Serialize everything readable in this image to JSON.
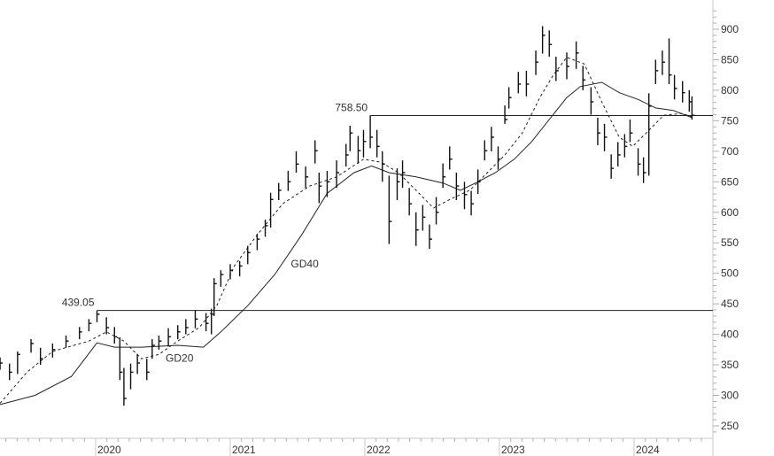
{
  "chart_data": {
    "type": "ohlc",
    "title": "",
    "xlabel": "",
    "ylabel": "",
    "grid": false,
    "x_ticks": [
      "2020",
      "2021",
      "2022",
      "2023",
      "2024"
    ],
    "y_ticks": [
      "900",
      "850",
      "800",
      "750",
      "700",
      "650",
      "600",
      "550",
      "500",
      "450",
      "400",
      "350",
      "300",
      "250"
    ],
    "ylim": [
      240,
      930
    ],
    "xlim_years": [
      2019.29,
      2024.58
    ],
    "bar_columns": [
      "year",
      "high",
      "low",
      "close"
    ],
    "bars": [
      [
        2019.29,
        362,
        342,
        353
      ],
      [
        2019.36,
        352,
        325,
        338
      ],
      [
        2019.42,
        372,
        335,
        367
      ],
      [
        2019.52,
        392,
        370,
        385
      ],
      [
        2019.59,
        378,
        350,
        360
      ],
      [
        2019.68,
        385,
        362,
        375
      ],
      [
        2019.78,
        398,
        378,
        389
      ],
      [
        2019.88,
        412,
        392,
        404
      ],
      [
        2019.95,
        425,
        405,
        418
      ],
      [
        2020.01,
        439.05,
        420,
        433
      ],
      [
        2020.08,
        428,
        400,
        411
      ],
      [
        2020.14,
        412,
        385,
        396
      ],
      [
        2020.18,
        395,
        325,
        338
      ],
      [
        2020.21,
        345,
        283,
        295
      ],
      [
        2020.26,
        352,
        310,
        338
      ],
      [
        2020.31,
        368,
        335,
        353
      ],
      [
        2020.38,
        360,
        325,
        338
      ],
      [
        2020.42,
        392,
        360,
        382
      ],
      [
        2020.47,
        398,
        375,
        389
      ],
      [
        2020.54,
        410,
        380,
        396
      ],
      [
        2020.61,
        415,
        392,
        404
      ],
      [
        2020.67,
        425,
        400,
        411
      ],
      [
        2020.74,
        440,
        410,
        425
      ],
      [
        2020.82,
        435,
        405,
        418
      ],
      [
        2020.86,
        442,
        400,
        433
      ],
      [
        2020.88,
        492,
        430,
        483
      ],
      [
        2020.93,
        505,
        478,
        498
      ],
      [
        2021.0,
        515,
        490,
        505
      ],
      [
        2021.07,
        520,
        495,
        512
      ],
      [
        2021.13,
        545,
        515,
        534
      ],
      [
        2021.2,
        565,
        538,
        556
      ],
      [
        2021.26,
        588,
        560,
        578
      ],
      [
        2021.3,
        632,
        575,
        621
      ],
      [
        2021.36,
        648,
        620,
        636
      ],
      [
        2021.43,
        668,
        635,
        650
      ],
      [
        2021.49,
        700,
        665,
        679
      ],
      [
        2021.56,
        675,
        640,
        658
      ],
      [
        2021.63,
        718,
        680,
        701
      ],
      [
        2021.66,
        665,
        615,
        643
      ],
      [
        2021.72,
        668,
        625,
        650
      ],
      [
        2021.79,
        685,
        640,
        665
      ],
      [
        2021.86,
        712,
        675,
        694
      ],
      [
        2021.89,
        742,
        700,
        730
      ],
      [
        2021.95,
        725,
        680,
        701
      ],
      [
        2021.99,
        735,
        690,
        716
      ],
      [
        2022.04,
        758.5,
        705,
        723
      ],
      [
        2022.09,
        735,
        690,
        708
      ],
      [
        2022.13,
        700,
        650,
        679
      ],
      [
        2022.18,
        660,
        548,
        585
      ],
      [
        2022.24,
        672,
        620,
        650
      ],
      [
        2022.28,
        685,
        640,
        665
      ],
      [
        2022.33,
        640,
        595,
        614
      ],
      [
        2022.38,
        600,
        545,
        571
      ],
      [
        2022.43,
        612,
        570,
        592
      ],
      [
        2022.48,
        580,
        540,
        556
      ],
      [
        2022.53,
        625,
        580,
        600
      ],
      [
        2022.58,
        680,
        640,
        658
      ],
      [
        2022.63,
        708,
        670,
        687
      ],
      [
        2022.68,
        665,
        620,
        643
      ],
      [
        2022.74,
        650,
        605,
        629
      ],
      [
        2022.79,
        635,
        595,
        614
      ],
      [
        2022.84,
        670,
        630,
        650
      ],
      [
        2022.89,
        718,
        685,
        701
      ],
      [
        2022.94,
        740,
        700,
        723
      ],
      [
        2022.99,
        708,
        670,
        687
      ],
      [
        2023.04,
        775,
        745,
        752
      ],
      [
        2023.07,
        805,
        770,
        788
      ],
      [
        2023.14,
        830,
        795,
        810
      ],
      [
        2023.2,
        832,
        790,
        810
      ],
      [
        2023.27,
        865,
        825,
        846
      ],
      [
        2023.32,
        905,
        860,
        890
      ],
      [
        2023.37,
        898,
        855,
        875
      ],
      [
        2023.42,
        855,
        815,
        832
      ],
      [
        2023.5,
        862,
        818,
        839
      ],
      [
        2023.57,
        880,
        835,
        861
      ],
      [
        2023.62,
        840,
        800,
        817
      ],
      [
        2023.68,
        805,
        760,
        781
      ],
      [
        2023.73,
        755,
        710,
        730
      ],
      [
        2023.78,
        745,
        700,
        723
      ],
      [
        2023.83,
        695,
        655,
        672
      ],
      [
        2023.88,
        715,
        675,
        694
      ],
      [
        2023.93,
        728,
        690,
        708
      ],
      [
        2023.97,
        752,
        715,
        730
      ],
      [
        2024.03,
        705,
        660,
        679
      ],
      [
        2024.07,
        690,
        648,
        665
      ],
      [
        2024.11,
        795,
        660,
        774
      ],
      [
        2024.16,
        850,
        810,
        832
      ],
      [
        2024.21,
        865,
        825,
        846
      ],
      [
        2024.26,
        885,
        810,
        825
      ],
      [
        2024.3,
        825,
        785,
        803
      ],
      [
        2024.36,
        815,
        780,
        796
      ],
      [
        2024.41,
        800,
        765,
        781
      ],
      [
        2024.43,
        790,
        752,
        759
      ]
    ],
    "series": [
      {
        "name": "GD20",
        "style": "dashed",
        "points": [
          [
            2019.29,
            287
          ],
          [
            2019.49,
            338
          ],
          [
            2019.68,
            372
          ],
          [
            2019.95,
            389
          ],
          [
            2020.08,
            404
          ],
          [
            2020.21,
            389
          ],
          [
            2020.34,
            360
          ],
          [
            2020.47,
            367
          ],
          [
            2020.61,
            389
          ],
          [
            2020.77,
            411
          ],
          [
            2020.9,
            447
          ],
          [
            2021.03,
            512
          ],
          [
            2021.2,
            563
          ],
          [
            2021.39,
            614
          ],
          [
            2021.59,
            643
          ],
          [
            2021.79,
            658
          ],
          [
            2021.99,
            687
          ],
          [
            2022.12,
            682
          ],
          [
            2022.25,
            665
          ],
          [
            2022.38,
            636
          ],
          [
            2022.51,
            607
          ],
          [
            2022.64,
            622
          ],
          [
            2022.78,
            636
          ],
          [
            2022.91,
            665
          ],
          [
            2023.04,
            694
          ],
          [
            2023.17,
            730
          ],
          [
            2023.3,
            788
          ],
          [
            2023.4,
            825
          ],
          [
            2023.5,
            854
          ],
          [
            2023.63,
            843
          ],
          [
            2023.76,
            781
          ],
          [
            2023.89,
            723
          ],
          [
            2023.99,
            708
          ],
          [
            2024.09,
            730
          ],
          [
            2024.22,
            759
          ],
          [
            2024.36,
            762
          ],
          [
            2024.43,
            756
          ]
        ]
      },
      {
        "name": "GD40",
        "style": "solid",
        "points": [
          [
            2019.29,
            285
          ],
          [
            2019.55,
            300
          ],
          [
            2019.82,
            331
          ],
          [
            2020.01,
            386
          ],
          [
            2020.14,
            379
          ],
          [
            2020.34,
            379
          ],
          [
            2020.61,
            382
          ],
          [
            2020.8,
            379
          ],
          [
            2020.93,
            404
          ],
          [
            2021.13,
            447
          ],
          [
            2021.33,
            498
          ],
          [
            2021.53,
            563
          ],
          [
            2021.72,
            631
          ],
          [
            2021.92,
            665
          ],
          [
            2022.05,
            676
          ],
          [
            2022.18,
            665
          ],
          [
            2022.38,
            658
          ],
          [
            2022.58,
            648
          ],
          [
            2022.71,
            636
          ],
          [
            2022.84,
            650
          ],
          [
            2022.97,
            665
          ],
          [
            2023.11,
            687
          ],
          [
            2023.24,
            716
          ],
          [
            2023.37,
            752
          ],
          [
            2023.5,
            788
          ],
          [
            2023.6,
            806
          ],
          [
            2023.76,
            813
          ],
          [
            2023.89,
            796
          ],
          [
            2024.03,
            785
          ],
          [
            2024.16,
            771
          ],
          [
            2024.29,
            767
          ],
          [
            2024.43,
            755
          ]
        ]
      }
    ],
    "reference_lines": [
      {
        "label": "758.50",
        "value": 758.5,
        "from_year": 2022.04
      },
      {
        "label": "439.05",
        "value": 439.05,
        "from_year": 2020.01
      }
    ],
    "annotations": [
      {
        "text": "GD20",
        "year": 2020.52,
        "price": 355
      },
      {
        "text": "GD40",
        "year": 2021.45,
        "price": 510
      }
    ]
  }
}
